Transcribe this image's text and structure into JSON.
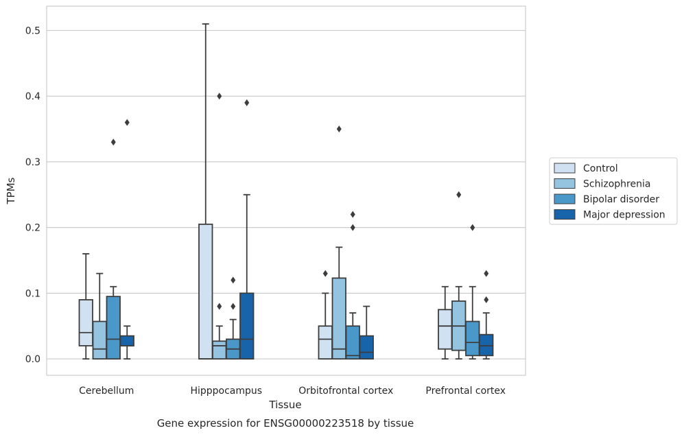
{
  "caption": "Gene expression for ENSG00000223518 by tissue",
  "chart_data": {
    "type": "box",
    "title": "",
    "xlabel": "Tissue",
    "ylabel": "TPMs",
    "ylim": [
      -0.025,
      0.537
    ],
    "yticks": [
      0.0,
      0.1,
      0.2,
      0.3,
      0.4,
      0.5
    ],
    "ytick_labels": [
      "0.0",
      "0.1",
      "0.2",
      "0.3",
      "0.4",
      "0.5"
    ],
    "grid": "horizontal",
    "legend_position": "right",
    "categories": [
      "Cerebellum",
      "Hipppocampus",
      "Orbitofrontal cortex",
      "Prefrontal cortex"
    ],
    "series": [
      {
        "name": "Control",
        "color": "#d0e1f2",
        "boxes": [
          {
            "whislo": 0.0,
            "q1": 0.02,
            "med": 0.04,
            "q3": 0.09,
            "whishi": 0.16,
            "fliers": []
          },
          {
            "whislo": 0.0,
            "q1": 0.0,
            "med": 0.0,
            "q3": 0.205,
            "whishi": 0.51,
            "fliers": []
          },
          {
            "whislo": 0.0,
            "q1": 0.0,
            "med": 0.03,
            "q3": 0.05,
            "whishi": 0.1,
            "fliers": [
              0.13
            ]
          },
          {
            "whislo": 0.0,
            "q1": 0.015,
            "med": 0.05,
            "q3": 0.075,
            "whishi": 0.11,
            "fliers": []
          }
        ]
      },
      {
        "name": "Schizophrenia",
        "color": "#94c4df",
        "boxes": [
          {
            "whislo": 0.0,
            "q1": 0.0,
            "med": 0.015,
            "q3": 0.057,
            "whishi": 0.13,
            "fliers": []
          },
          {
            "whislo": 0.0,
            "q1": 0.0,
            "med": 0.02,
            "q3": 0.027,
            "whishi": 0.05,
            "fliers": [
              0.08,
              0.4
            ]
          },
          {
            "whislo": 0.0,
            "q1": 0.0,
            "med": 0.015,
            "q3": 0.123,
            "whishi": 0.17,
            "fliers": [
              0.35
            ]
          },
          {
            "whislo": 0.0,
            "q1": 0.013,
            "med": 0.05,
            "q3": 0.088,
            "whishi": 0.11,
            "fliers": [
              0.25
            ]
          }
        ]
      },
      {
        "name": "Bipolar disorder",
        "color": "#4a98c9",
        "boxes": [
          {
            "whislo": 0.0,
            "q1": 0.0,
            "med": 0.03,
            "q3": 0.095,
            "whishi": 0.11,
            "fliers": [
              0.33
            ]
          },
          {
            "whislo": 0.0,
            "q1": 0.0,
            "med": 0.015,
            "q3": 0.03,
            "whishi": 0.06,
            "fliers": [
              0.08,
              0.12
            ]
          },
          {
            "whislo": 0.0,
            "q1": 0.0,
            "med": 0.005,
            "q3": 0.05,
            "whishi": 0.07,
            "fliers": [
              0.2,
              0.22
            ]
          },
          {
            "whislo": 0.0,
            "q1": 0.005,
            "med": 0.025,
            "q3": 0.057,
            "whishi": 0.11,
            "fliers": [
              0.2
            ]
          }
        ]
      },
      {
        "name": "Major depression",
        "color": "#1764ab",
        "boxes": [
          {
            "whislo": 0.0,
            "q1": 0.02,
            "med": 0.02,
            "q3": 0.035,
            "whishi": 0.05,
            "fliers": [
              0.36
            ]
          },
          {
            "whislo": 0.0,
            "q1": 0.0,
            "med": 0.03,
            "q3": 0.1,
            "whishi": 0.25,
            "fliers": [
              0.39
            ]
          },
          {
            "whislo": 0.0,
            "q1": 0.0,
            "med": 0.01,
            "q3": 0.035,
            "whishi": 0.08,
            "fliers": []
          },
          {
            "whislo": 0.0,
            "q1": 0.005,
            "med": 0.02,
            "q3": 0.037,
            "whishi": 0.07,
            "fliers": [
              0.09,
              0.13
            ]
          }
        ]
      }
    ]
  }
}
